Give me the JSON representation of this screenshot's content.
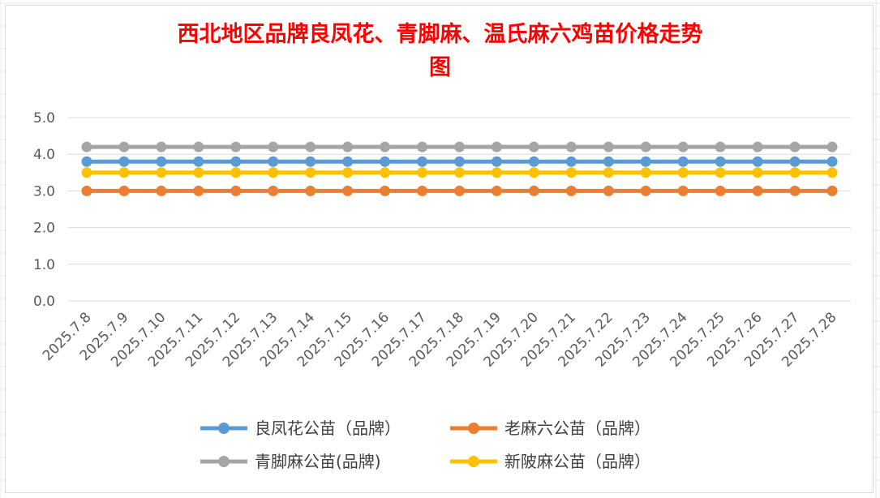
{
  "chart_data": {
    "type": "line",
    "title_lines": [
      "西北地区品牌良凤花、青脚麻、温氏麻六鸡苗价格走势",
      "图"
    ],
    "categories": [
      "2025.7.8",
      "2025.7.9",
      "2025.7.10",
      "2025.7.11",
      "2025.7.12",
      "2025.7.13",
      "2025.7.14",
      "2025.7.15",
      "2025.7.16",
      "2025.7.17",
      "2025.7.18",
      "2025.7.19",
      "2025.7.20",
      "2025.7.21",
      "2025.7.22",
      "2025.7.23",
      "2025.7.24",
      "2025.7.25",
      "2025.7.26",
      "2025.7.27",
      "2025.7.28"
    ],
    "ylim": [
      0,
      5
    ],
    "yticks": [
      "0.0",
      "1.0",
      "2.0",
      "3.0",
      "4.0",
      "5.0"
    ],
    "grid": true,
    "legend_position": "bottom",
    "series": [
      {
        "name": "良凤花公苗（品牌）",
        "color": "#5b9bd5",
        "values": [
          3.8,
          3.8,
          3.8,
          3.8,
          3.8,
          3.8,
          3.8,
          3.8,
          3.8,
          3.8,
          3.8,
          3.8,
          3.8,
          3.8,
          3.8,
          3.8,
          3.8,
          3.8,
          3.8,
          3.8,
          3.8
        ]
      },
      {
        "name": "老麻六公苗（品牌）",
        "color": "#ed7d31",
        "values": [
          3.0,
          3.0,
          3.0,
          3.0,
          3.0,
          3.0,
          3.0,
          3.0,
          3.0,
          3.0,
          3.0,
          3.0,
          3.0,
          3.0,
          3.0,
          3.0,
          3.0,
          3.0,
          3.0,
          3.0,
          3.0
        ]
      },
      {
        "name": "青脚麻公苗(品牌)",
        "color": "#a5a5a5",
        "values": [
          4.2,
          4.2,
          4.2,
          4.2,
          4.2,
          4.2,
          4.2,
          4.2,
          4.2,
          4.2,
          4.2,
          4.2,
          4.2,
          4.2,
          4.2,
          4.2,
          4.2,
          4.2,
          4.2,
          4.2,
          4.2
        ]
      },
      {
        "name": "新陂麻公苗（品牌）",
        "color": "#ffc000",
        "values": [
          3.5,
          3.5,
          3.5,
          3.5,
          3.5,
          3.5,
          3.5,
          3.5,
          3.5,
          3.5,
          3.5,
          3.5,
          3.5,
          3.5,
          3.5,
          3.5,
          3.5,
          3.5,
          3.5,
          3.5,
          3.5
        ]
      }
    ]
  }
}
